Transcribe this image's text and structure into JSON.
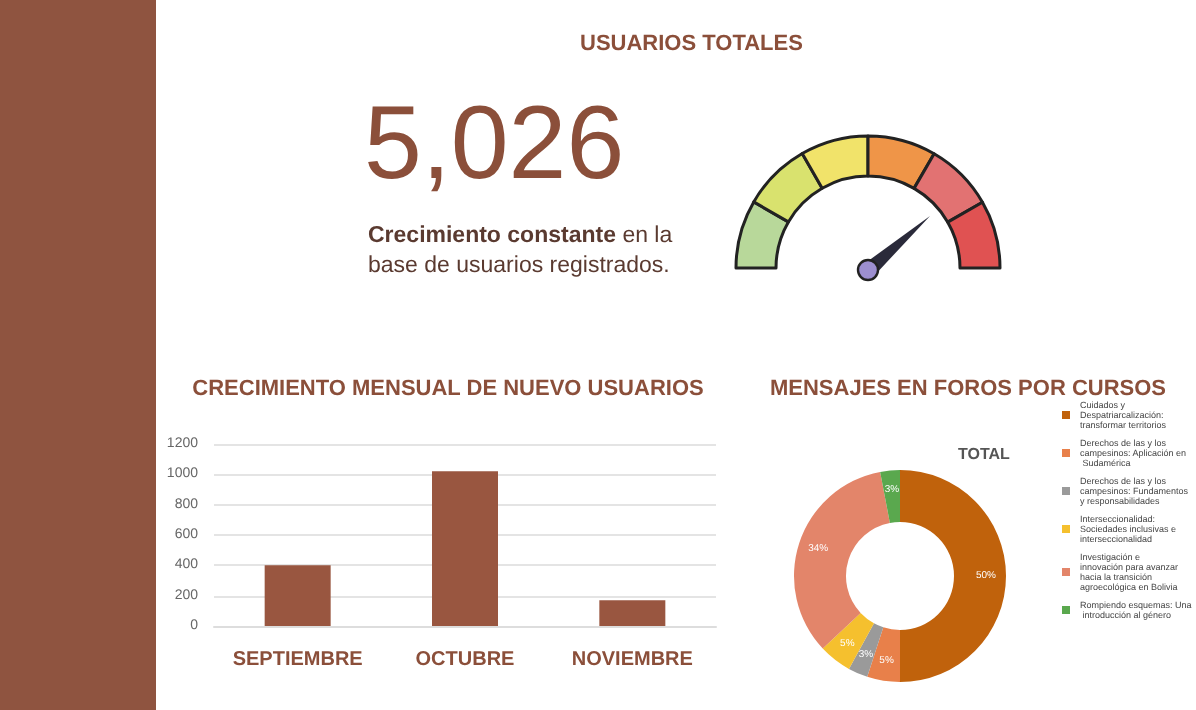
{
  "chart_data": [
    {
      "type": "other",
      "title": "USUARIOS TOTALES",
      "annotations": [
        "5,026",
        "Crecimiento constante",
        "en la base de usuarios registrados."
      ]
    },
    {
      "type": "donut",
      "categories": [
        null,
        null,
        null,
        null,
        null,
        null
      ],
      "values": [
        16.7,
        16.7,
        16.6,
        16.7,
        16.7,
        16.6
      ],
      "colors": [
        "#b8d89a",
        "#d9e26e",
        "#f1e36a",
        "#ef9548",
        "#e27272",
        "#e05252"
      ]
    },
    {
      "type": "bar",
      "title": "CRECIMIENTO MENSUAL DE NUEVO USUARIOS",
      "categories": [
        "SEPTIEMBRE",
        "OCTUBRE",
        "NOVIEMBRE"
      ],
      "values": [
        400,
        1020,
        170
      ],
      "color": "#995640",
      "ylim": [
        0,
        1200
      ],
      "yticks": [
        0,
        200,
        400,
        600,
        800,
        1000,
        1200
      ],
      "grid": "y"
    },
    {
      "type": "donut",
      "title": "MENSAJES EN FOROS POR CURSOS",
      "subtitle": "TOTAL",
      "categories": [
        "Cuidados y Despatriarcalización: transformar territorios",
        "Derechos de las y los campesinos: Aplicación en Sudamérica",
        "Derechos de las y los campesinos: Fundamentos y responsabilidades",
        "Interseccionalidad: Sociedades inclusivas e interseccionalidad",
        "Investigación e innovación para avanzar hacia la transición agroecológica en Bolivia",
        "Rompiendo esquemas: Una introducción al género"
      ],
      "values": [
        50,
        5,
        3,
        5,
        34,
        3
      ],
      "colors": [
        "#c0620c",
        "#e8804a",
        "#9a9a9a",
        "#f5c02e",
        "#e3856a",
        "#5aa84e"
      ],
      "value_labels": [
        "50%",
        "5%",
        "3%",
        "5%",
        "34%",
        "3%"
      ],
      "legend": "right"
    }
  ]
}
